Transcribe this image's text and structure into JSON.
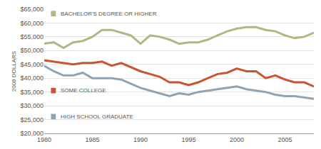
{
  "chart_data": {
    "type": "line",
    "y_label": "2008 DOLLARS",
    "x": [
      1980,
      1981,
      1982,
      1983,
      1984,
      1985,
      1986,
      1987,
      1988,
      1989,
      1990,
      1991,
      1992,
      1993,
      1994,
      1995,
      1996,
      1997,
      1998,
      1999,
      2000,
      2001,
      2002,
      2003,
      2004,
      2005,
      2006,
      2007,
      2008
    ],
    "series": [
      {
        "name": "BACHELOR'S DEGREE OR HIGHER",
        "color": "#b5b582",
        "values": [
          52500,
          53000,
          51000,
          53000,
          53500,
          55000,
          57500,
          57500,
          56500,
          55500,
          52500,
          55500,
          55000,
          54000,
          52500,
          53000,
          53000,
          54000,
          55500,
          57000,
          58000,
          58500,
          58500,
          57500,
          57000,
          55500,
          54500,
          55000,
          56500
        ]
      },
      {
        "name": "SOME COLLEGE",
        "color": "#c9542e",
        "values": [
          46500,
          46000,
          45500,
          45000,
          45500,
          45500,
          46000,
          44500,
          45500,
          44000,
          42500,
          41500,
          40500,
          38500,
          38500,
          37500,
          38500,
          40000,
          41500,
          42000,
          43500,
          42500,
          42500,
          40000,
          41000,
          39500,
          38500,
          38500,
          37000
        ]
      },
      {
        "name": "HIGH SCHOOL GRADUATE",
        "color": "#8ea3b3",
        "values": [
          44500,
          42500,
          41000,
          41000,
          42000,
          40000,
          40000,
          40000,
          39500,
          38000,
          36500,
          35500,
          34500,
          33500,
          34500,
          34000,
          35000,
          35500,
          36000,
          36500,
          37000,
          36000,
          35500,
          35000,
          34000,
          33500,
          33500,
          33000,
          32500
        ]
      }
    ],
    "xlim": [
      1980,
      2008
    ],
    "xticks": [
      1980,
      1985,
      1990,
      1995,
      2000,
      2005
    ],
    "ylim": [
      20000,
      65000
    ],
    "yticks": [
      {
        "value": 20000,
        "label": "$20,000"
      },
      {
        "value": 25000,
        "label": "$25,000"
      },
      {
        "value": 30000,
        "label": "$30,000"
      },
      {
        "value": 35000,
        "label": "$35,000"
      },
      {
        "value": 40000,
        "label": "$40,000"
      },
      {
        "value": 45000,
        "label": "$45,000"
      },
      {
        "value": 50000,
        "label": "$50,000"
      },
      {
        "value": 55000,
        "label": "$55,000"
      },
      {
        "value": 60000,
        "label": "$60,000"
      },
      {
        "value": 65000,
        "label": "$65,000"
      }
    ],
    "grid": true
  }
}
